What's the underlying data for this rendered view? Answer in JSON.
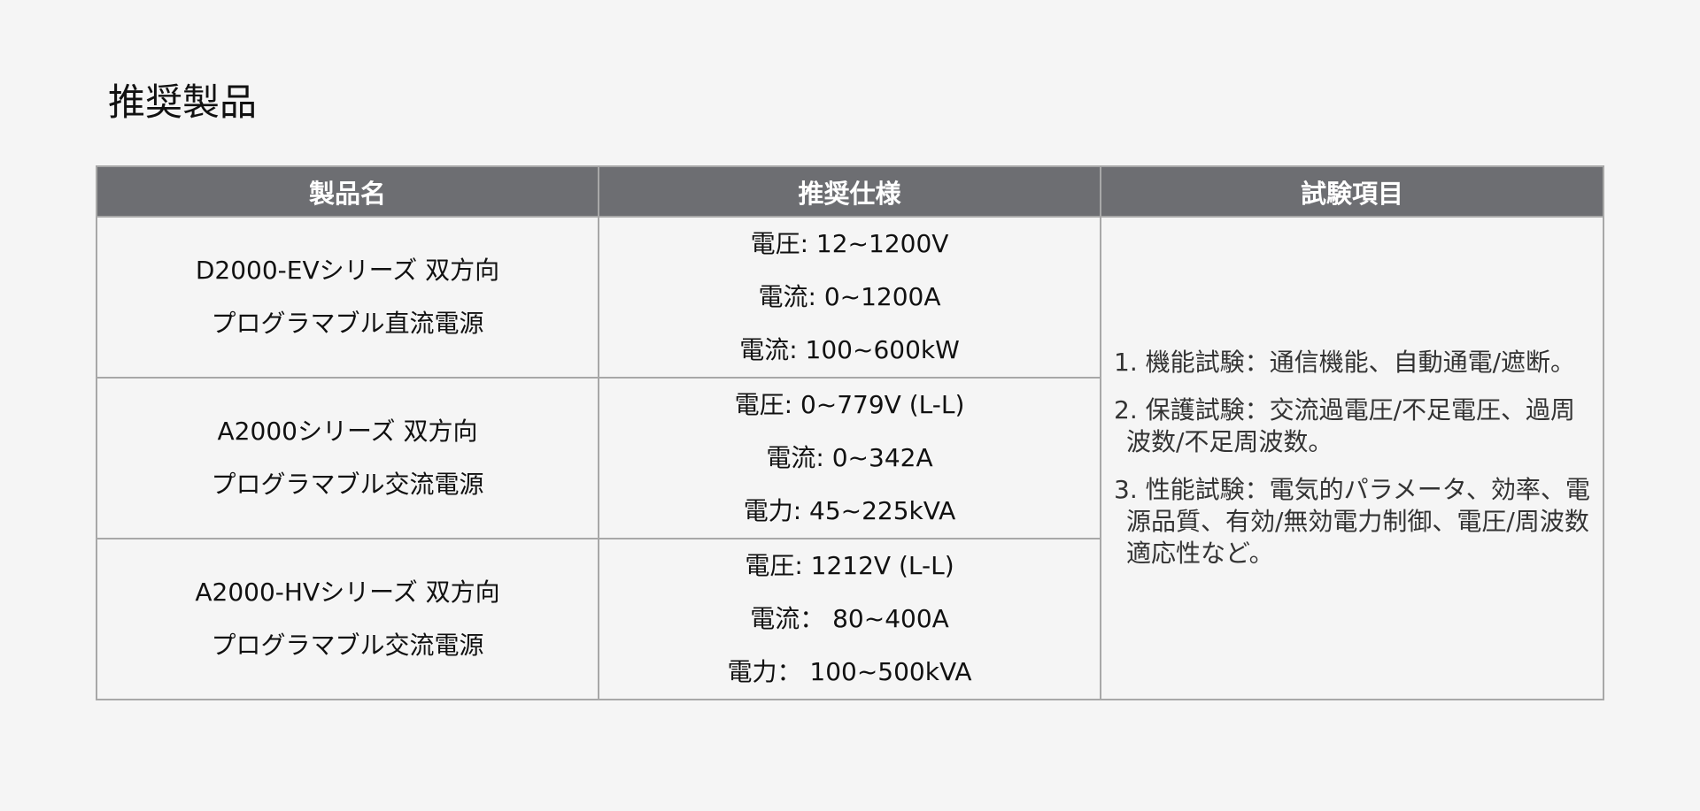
{
  "title": "推奨製品",
  "table": {
    "headers": [
      "製品名",
      "推奨仕様",
      "試験項目"
    ],
    "rows": [
      {
        "product": [
          "D2000-EVシリーズ 双方向",
          "プログラマブル直流電源"
        ],
        "specs": [
          "電圧: 12~1200V",
          "電流: 0~1200A",
          "電流: 100~600kW"
        ]
      },
      {
        "product": [
          "A2000シリーズ 双方向",
          "プログラマブル交流電源"
        ],
        "specs": [
          "電圧: 0~779V (L-L)",
          "電流: 0~342A",
          "電力: 45~225kVA"
        ]
      },
      {
        "product": [
          "A2000-HVシリーズ 双方向",
          "プログラマブル交流電源"
        ],
        "specs": [
          "電圧: 1212V (L-L)",
          "電流： 80~400A",
          "電力： 100~500kVA"
        ]
      }
    ],
    "tests": [
      "1. 機能試験：通信機能、自動通電/遮断。",
      "2. 保護試験：交流過電圧/不足電圧、過周波数/不足周波数。",
      "3. 性能試験：電気的パラメータ、効率、電源品質、有効/無効電力制御、電圧/周波数適応性など。"
    ]
  }
}
